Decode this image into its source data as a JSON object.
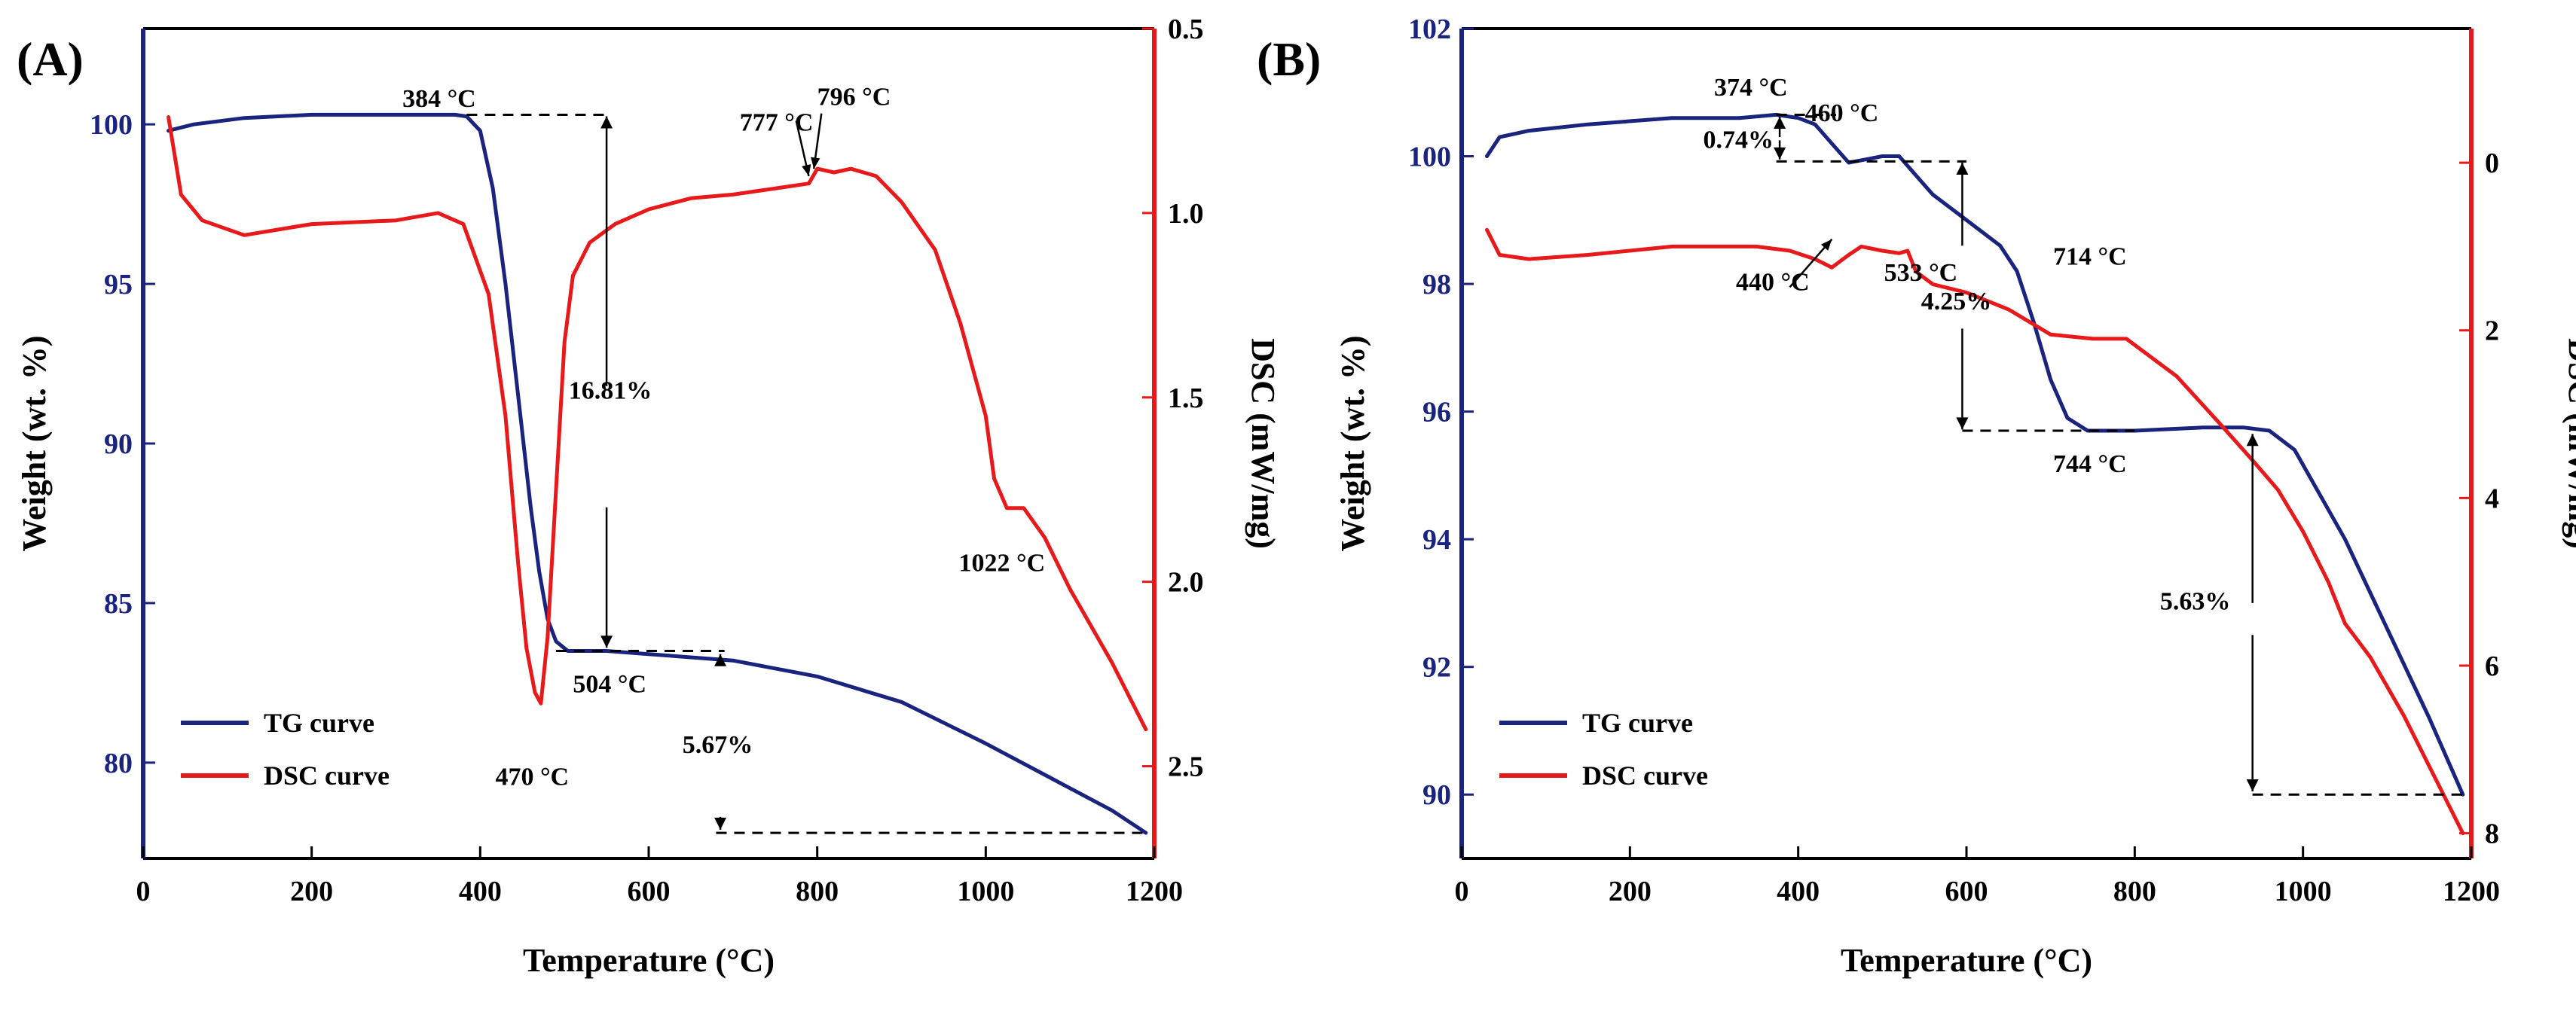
{
  "chart_data": [
    {
      "panel": "(A)",
      "type": "line",
      "xlabel": "Temperature (°C)",
      "ylabel_left": "Weight (wt. %)",
      "ylabel_right": "DSC (mW/mg)",
      "xlim": [
        0,
        1200
      ],
      "ylim_left": [
        77,
        103
      ],
      "ylim_right": [
        2.75,
        0.5
      ],
      "xticks": [
        "0",
        "200",
        "400",
        "600",
        "800",
        "1000",
        "1200"
      ],
      "yticks_left": [
        "80",
        "85",
        "90",
        "95",
        "100"
      ],
      "yticks_right": [
        "0.5",
        "1.0",
        "1.5",
        "2.0",
        "2.5"
      ],
      "colors": {
        "tg": "#1a237e",
        "dsc": "#e8191b",
        "left_axis": "#1a237e",
        "right_axis": "#e8191b"
      },
      "series": [
        {
          "name": "TG curve",
          "axis": "left",
          "x": [
            30,
            60,
            120,
            200,
            300,
            370,
            384,
            400,
            415,
            430,
            445,
            460,
            470,
            480,
            490,
            504,
            550,
            600,
            700,
            800,
            900,
            1000,
            1100,
            1150,
            1190
          ],
          "values": [
            99.8,
            100.0,
            100.2,
            100.3,
            100.3,
            100.3,
            100.25,
            99.8,
            98.0,
            95.0,
            91.5,
            88.0,
            86.0,
            84.5,
            83.8,
            83.5,
            83.5,
            83.4,
            83.2,
            82.7,
            81.9,
            80.6,
            79.2,
            78.5,
            77.8
          ]
        },
        {
          "name": "DSC curve",
          "axis": "right",
          "x": [
            30,
            45,
            70,
            120,
            200,
            300,
            350,
            380,
            410,
            430,
            445,
            455,
            465,
            472,
            480,
            490,
            500,
            510,
            530,
            560,
            600,
            650,
            700,
            760,
            790,
            800,
            820,
            840,
            870,
            900,
            940,
            970,
            1000,
            1010,
            1025,
            1045,
            1070,
            1100,
            1150,
            1190
          ],
          "values": [
            0.74,
            0.95,
            1.02,
            1.06,
            1.03,
            1.02,
            1.0,
            1.03,
            1.22,
            1.55,
            1.95,
            2.18,
            2.3,
            2.33,
            2.15,
            1.75,
            1.35,
            1.17,
            1.08,
            1.03,
            0.99,
            0.96,
            0.95,
            0.93,
            0.92,
            0.88,
            0.89,
            0.88,
            0.9,
            0.97,
            1.1,
            1.3,
            1.55,
            1.72,
            1.8,
            1.8,
            1.88,
            2.02,
            2.22,
            2.4
          ]
        }
      ],
      "annotations": [
        {
          "text": "384 °C",
          "x": 395,
          "y": 100.55,
          "anchor": "end"
        },
        {
          "text": "777 °C",
          "x": 708,
          "y": 99.8,
          "anchor": "start"
        },
        {
          "text": "796 °C",
          "x": 800,
          "y": 100.6,
          "anchor": "start"
        },
        {
          "text": "16.81%",
          "x": 505,
          "y": 91.4,
          "anchor": "start"
        },
        {
          "text": "504 °C",
          "x": 510,
          "y": 82.2,
          "anchor": "start"
        },
        {
          "text": "470 °C",
          "x": 418,
          "y": 79.3,
          "anchor": "start"
        },
        {
          "text": "5.67%",
          "x": 640,
          "y": 80.3,
          "anchor": "start"
        },
        {
          "text": "1022 °C",
          "x": 968,
          "y": 86.0,
          "anchor": "start"
        }
      ],
      "legend": [
        "TG curve",
        "DSC curve"
      ]
    },
    {
      "panel": "(B)",
      "type": "line",
      "xlabel": "Temperature (°C)",
      "ylabel_left": "Weight (wt. %)",
      "ylabel_right": "DSC (mW/mg)",
      "xlim": [
        0,
        1200
      ],
      "ylim_left": [
        89,
        102
      ],
      "ylim_right": [
        8.3,
        -1.6
      ],
      "xticks": [
        "0",
        "200",
        "400",
        "600",
        "800",
        "1000",
        "1200"
      ],
      "yticks_left": [
        "90",
        "92",
        "94",
        "96",
        "98",
        "100",
        "102"
      ],
      "yticks_right": [
        "0",
        "2",
        "4",
        "6",
        "8"
      ],
      "colors": {
        "tg": "#1a237e",
        "dsc": "#e8191b",
        "left_axis": "#1a237e",
        "right_axis": "#e8191b"
      },
      "series": [
        {
          "name": "TG curve",
          "axis": "left",
          "x": [
            30,
            45,
            80,
            150,
            250,
            330,
            374,
            400,
            420,
            440,
            460,
            480,
            500,
            520,
            540,
            560,
            600,
            640,
            660,
            680,
            700,
            720,
            744,
            800,
            880,
            930,
            960,
            990,
            1050,
            1100,
            1150,
            1190
          ],
          "values": [
            100.0,
            100.3,
            100.4,
            100.5,
            100.6,
            100.6,
            100.65,
            100.6,
            100.5,
            100.2,
            99.9,
            99.95,
            100.0,
            100.0,
            99.7,
            99.4,
            99.0,
            98.6,
            98.2,
            97.4,
            96.5,
            95.9,
            95.7,
            95.7,
            95.75,
            95.75,
            95.7,
            95.4,
            94.0,
            92.6,
            91.2,
            90.0
          ]
        },
        {
          "name": "DSC curve",
          "axis": "right",
          "x": [
            30,
            45,
            80,
            150,
            250,
            350,
            390,
            420,
            440,
            460,
            475,
            500,
            520,
            530,
            540,
            560,
            600,
            650,
            700,
            750,
            790,
            850,
            900,
            940,
            970,
            1000,
            1030,
            1050,
            1080,
            1120,
            1160,
            1190
          ],
          "values": [
            0.8,
            1.1,
            1.15,
            1.1,
            1.0,
            1.0,
            1.05,
            1.15,
            1.25,
            1.1,
            1.0,
            1.05,
            1.08,
            1.05,
            1.3,
            1.45,
            1.55,
            1.75,
            2.05,
            2.1,
            2.1,
            2.55,
            3.1,
            3.55,
            3.9,
            4.4,
            5.0,
            5.5,
            5.9,
            6.6,
            7.4,
            8.0
          ]
        }
      ],
      "annotations": [
        {
          "text": "374 °C",
          "x": 300,
          "y": 100.95,
          "anchor": "start"
        },
        {
          "text": "460 °C",
          "x": 408,
          "y": 100.55,
          "anchor": "start"
        },
        {
          "text": "0.74%",
          "x": 287,
          "y": 100.13,
          "anchor": "start"
        },
        {
          "text": "440 °C",
          "x": 326,
          "y": 97.9,
          "anchor": "start"
        },
        {
          "text": "533 °C",
          "x": 502,
          "y": 98.05,
          "anchor": "start"
        },
        {
          "text": "714 °C",
          "x": 703,
          "y": 98.3,
          "anchor": "start"
        },
        {
          "text": "4.25%",
          "x": 546,
          "y": 97.6,
          "anchor": "start"
        },
        {
          "text": "744 °C",
          "x": 703,
          "y": 95.05,
          "anchor": "start"
        },
        {
          "text": "5.63%",
          "x": 830,
          "y": 92.9,
          "anchor": "start"
        }
      ],
      "legend": [
        "TG curve",
        "DSC curve"
      ]
    }
  ]
}
